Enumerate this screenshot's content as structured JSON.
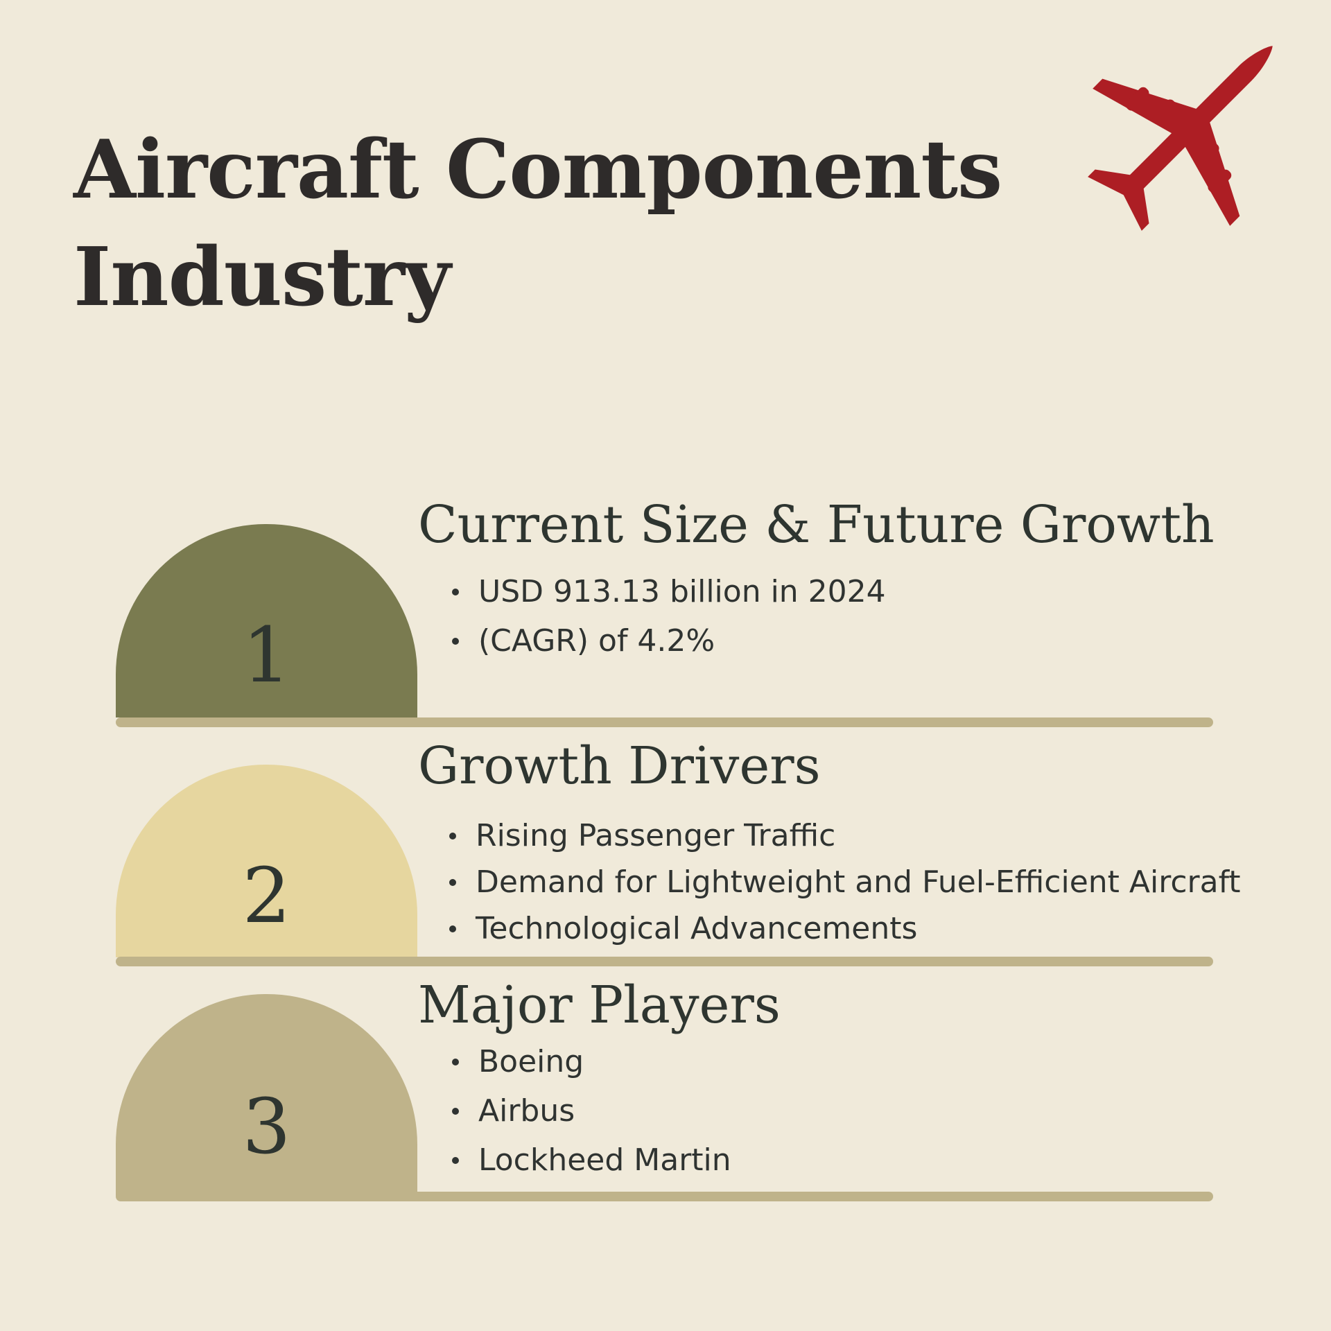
{
  "title": {
    "line1": "Aircraft Components",
    "line2": "Industry"
  },
  "icons": {
    "plane": "airplane-icon"
  },
  "colors": {
    "background": "#f0eada",
    "plane": "#ad1e24",
    "dome1": "#7a7b50",
    "dome2": "#e6d69f",
    "dome3": "#bfb38a",
    "rule": "#bfb38a"
  },
  "sections": [
    {
      "number": "1",
      "heading": "Current Size & Future Growth",
      "bullets": [
        "USD 913.13 billion in 2024",
        "(CAGR) of  4.2%"
      ]
    },
    {
      "number": "2",
      "heading": "Growth Drivers",
      "bullets": [
        "Rising Passenger Traffic",
        "Demand for Lightweight and Fuel-Efficient Aircraft",
        "Technological Advancements"
      ]
    },
    {
      "number": "3",
      "heading": "Major Players",
      "bullets": [
        "Boeing",
        "Airbus",
        "Lockheed Martin"
      ]
    }
  ]
}
